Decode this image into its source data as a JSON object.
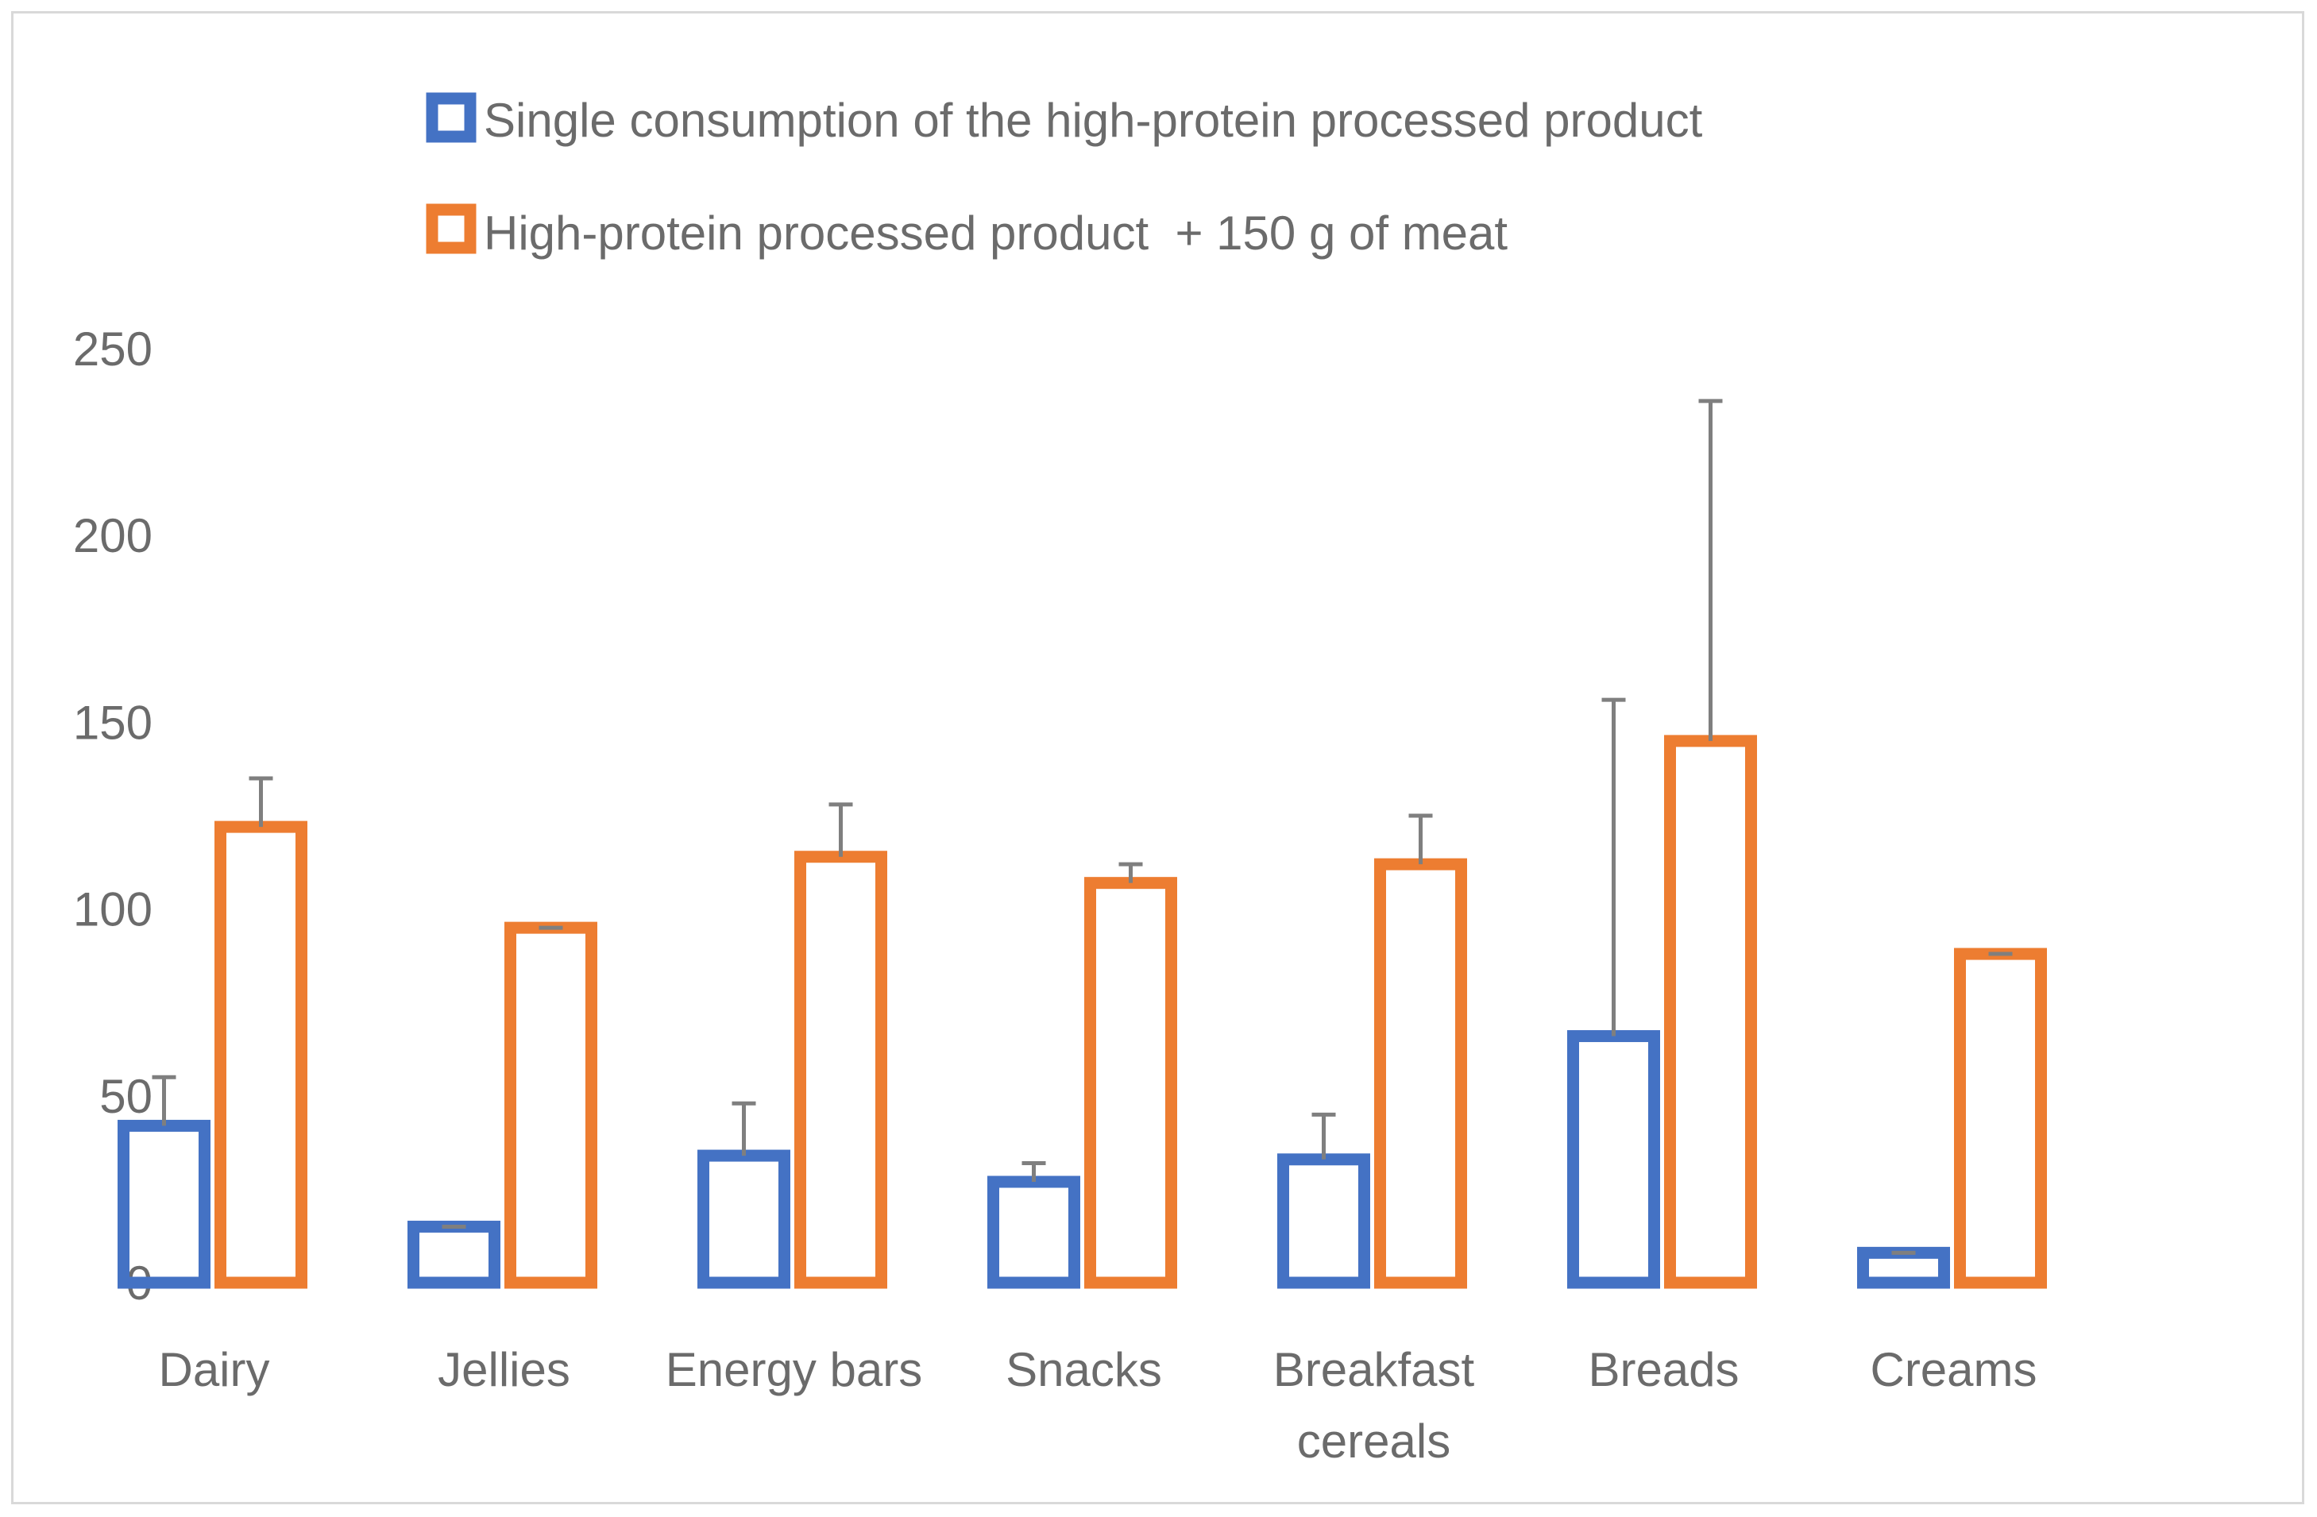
{
  "chart_data": {
    "type": "bar",
    "categories": [
      [
        "Dairy"
      ],
      [
        "Jellies"
      ],
      [
        "Energy bars"
      ],
      [
        "Snacks"
      ],
      [
        "Breakfast",
        "cereals"
      ],
      [
        "Breads"
      ],
      [
        "Creams"
      ]
    ],
    "series": [
      {
        "name": "Single consumption of the high-protein processed product",
        "color": "#4472c4",
        "values": [
          42,
          15,
          34,
          27,
          33,
          66,
          8
        ],
        "error_plus": [
          13,
          0,
          14,
          5,
          12,
          90,
          0
        ]
      },
      {
        "name": "High-protein processed product  + 150 g of meat",
        "color": "#ed7d31",
        "values": [
          122,
          95,
          114,
          107,
          112,
          145,
          88
        ],
        "error_plus": [
          13,
          0,
          14,
          5,
          13,
          91,
          0
        ]
      }
    ],
    "ylim": [
      0,
      250
    ],
    "yticks": [
      0,
      50,
      100,
      150,
      200,
      250
    ],
    "title": "",
    "xlabel": "",
    "ylabel": "",
    "grid": false,
    "legend_position": "top",
    "error_bar_color": "#7f7f7f"
  }
}
